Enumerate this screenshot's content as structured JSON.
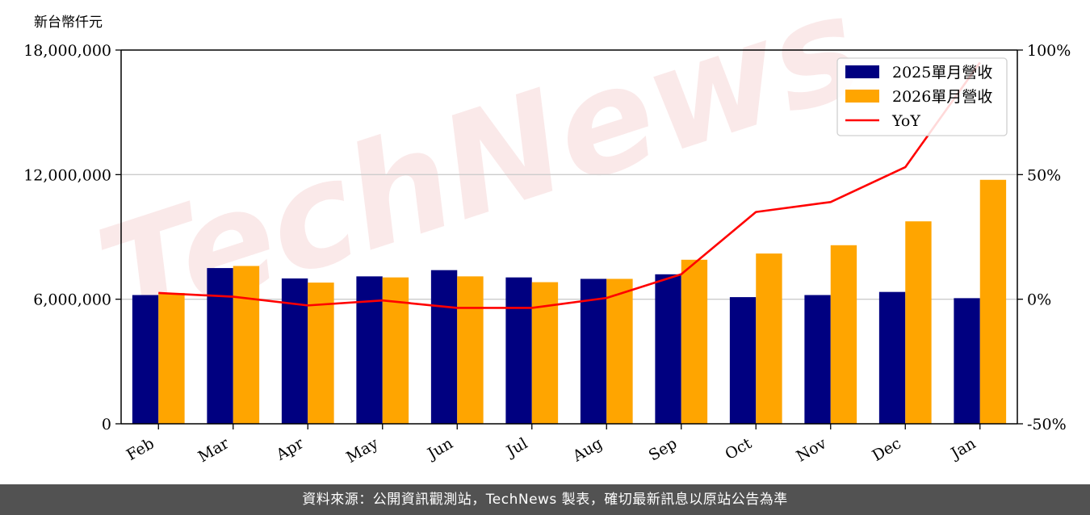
{
  "chart_data": {
    "type": "bar",
    "y_unit_label": "新台幣仟元",
    "categories": [
      "Feb",
      "Mar",
      "Apr",
      "May",
      "Jun",
      "Jul",
      "Aug",
      "Sep",
      "Oct",
      "Nov",
      "Dec",
      "Jan"
    ],
    "series": [
      {
        "name": "2025單月營收",
        "values": [
          6200000,
          7500000,
          7000000,
          7100000,
          7400000,
          7050000,
          6980000,
          7200000,
          6100000,
          6200000,
          6350000,
          6050000
        ],
        "color": "#000080"
      },
      {
        "name": "2026單月營收",
        "values": [
          6300000,
          7600000,
          6800000,
          7050000,
          7100000,
          6820000,
          6980000,
          7900000,
          8200000,
          8600000,
          9750000,
          11750000
        ],
        "color": "#ffa500"
      }
    ],
    "line_series": {
      "name": "YoY",
      "values": [
        2.5,
        1.0,
        -2.5,
        -0.5,
        -3.5,
        -3.5,
        0.5,
        10.0,
        35.0,
        39.0,
        53.0,
        95.0
      ],
      "color": "#ff0000",
      "axis": "right"
    },
    "yticks_left": [
      "0",
      "6,000,000",
      "12,000,000",
      "18,000,000"
    ],
    "yticks_right": [
      "-50%",
      "0%",
      "50%",
      "100%"
    ],
    "ylim_left": [
      0,
      18000000
    ],
    "ylim_right": [
      -50,
      100
    ],
    "grid": "horizontal",
    "legend_position": "top-right"
  },
  "watermark": "TechNews",
  "footer_text": "資料來源：公開資訊觀測站，TechNews 製表，確切最新訊息以原站公告為準"
}
